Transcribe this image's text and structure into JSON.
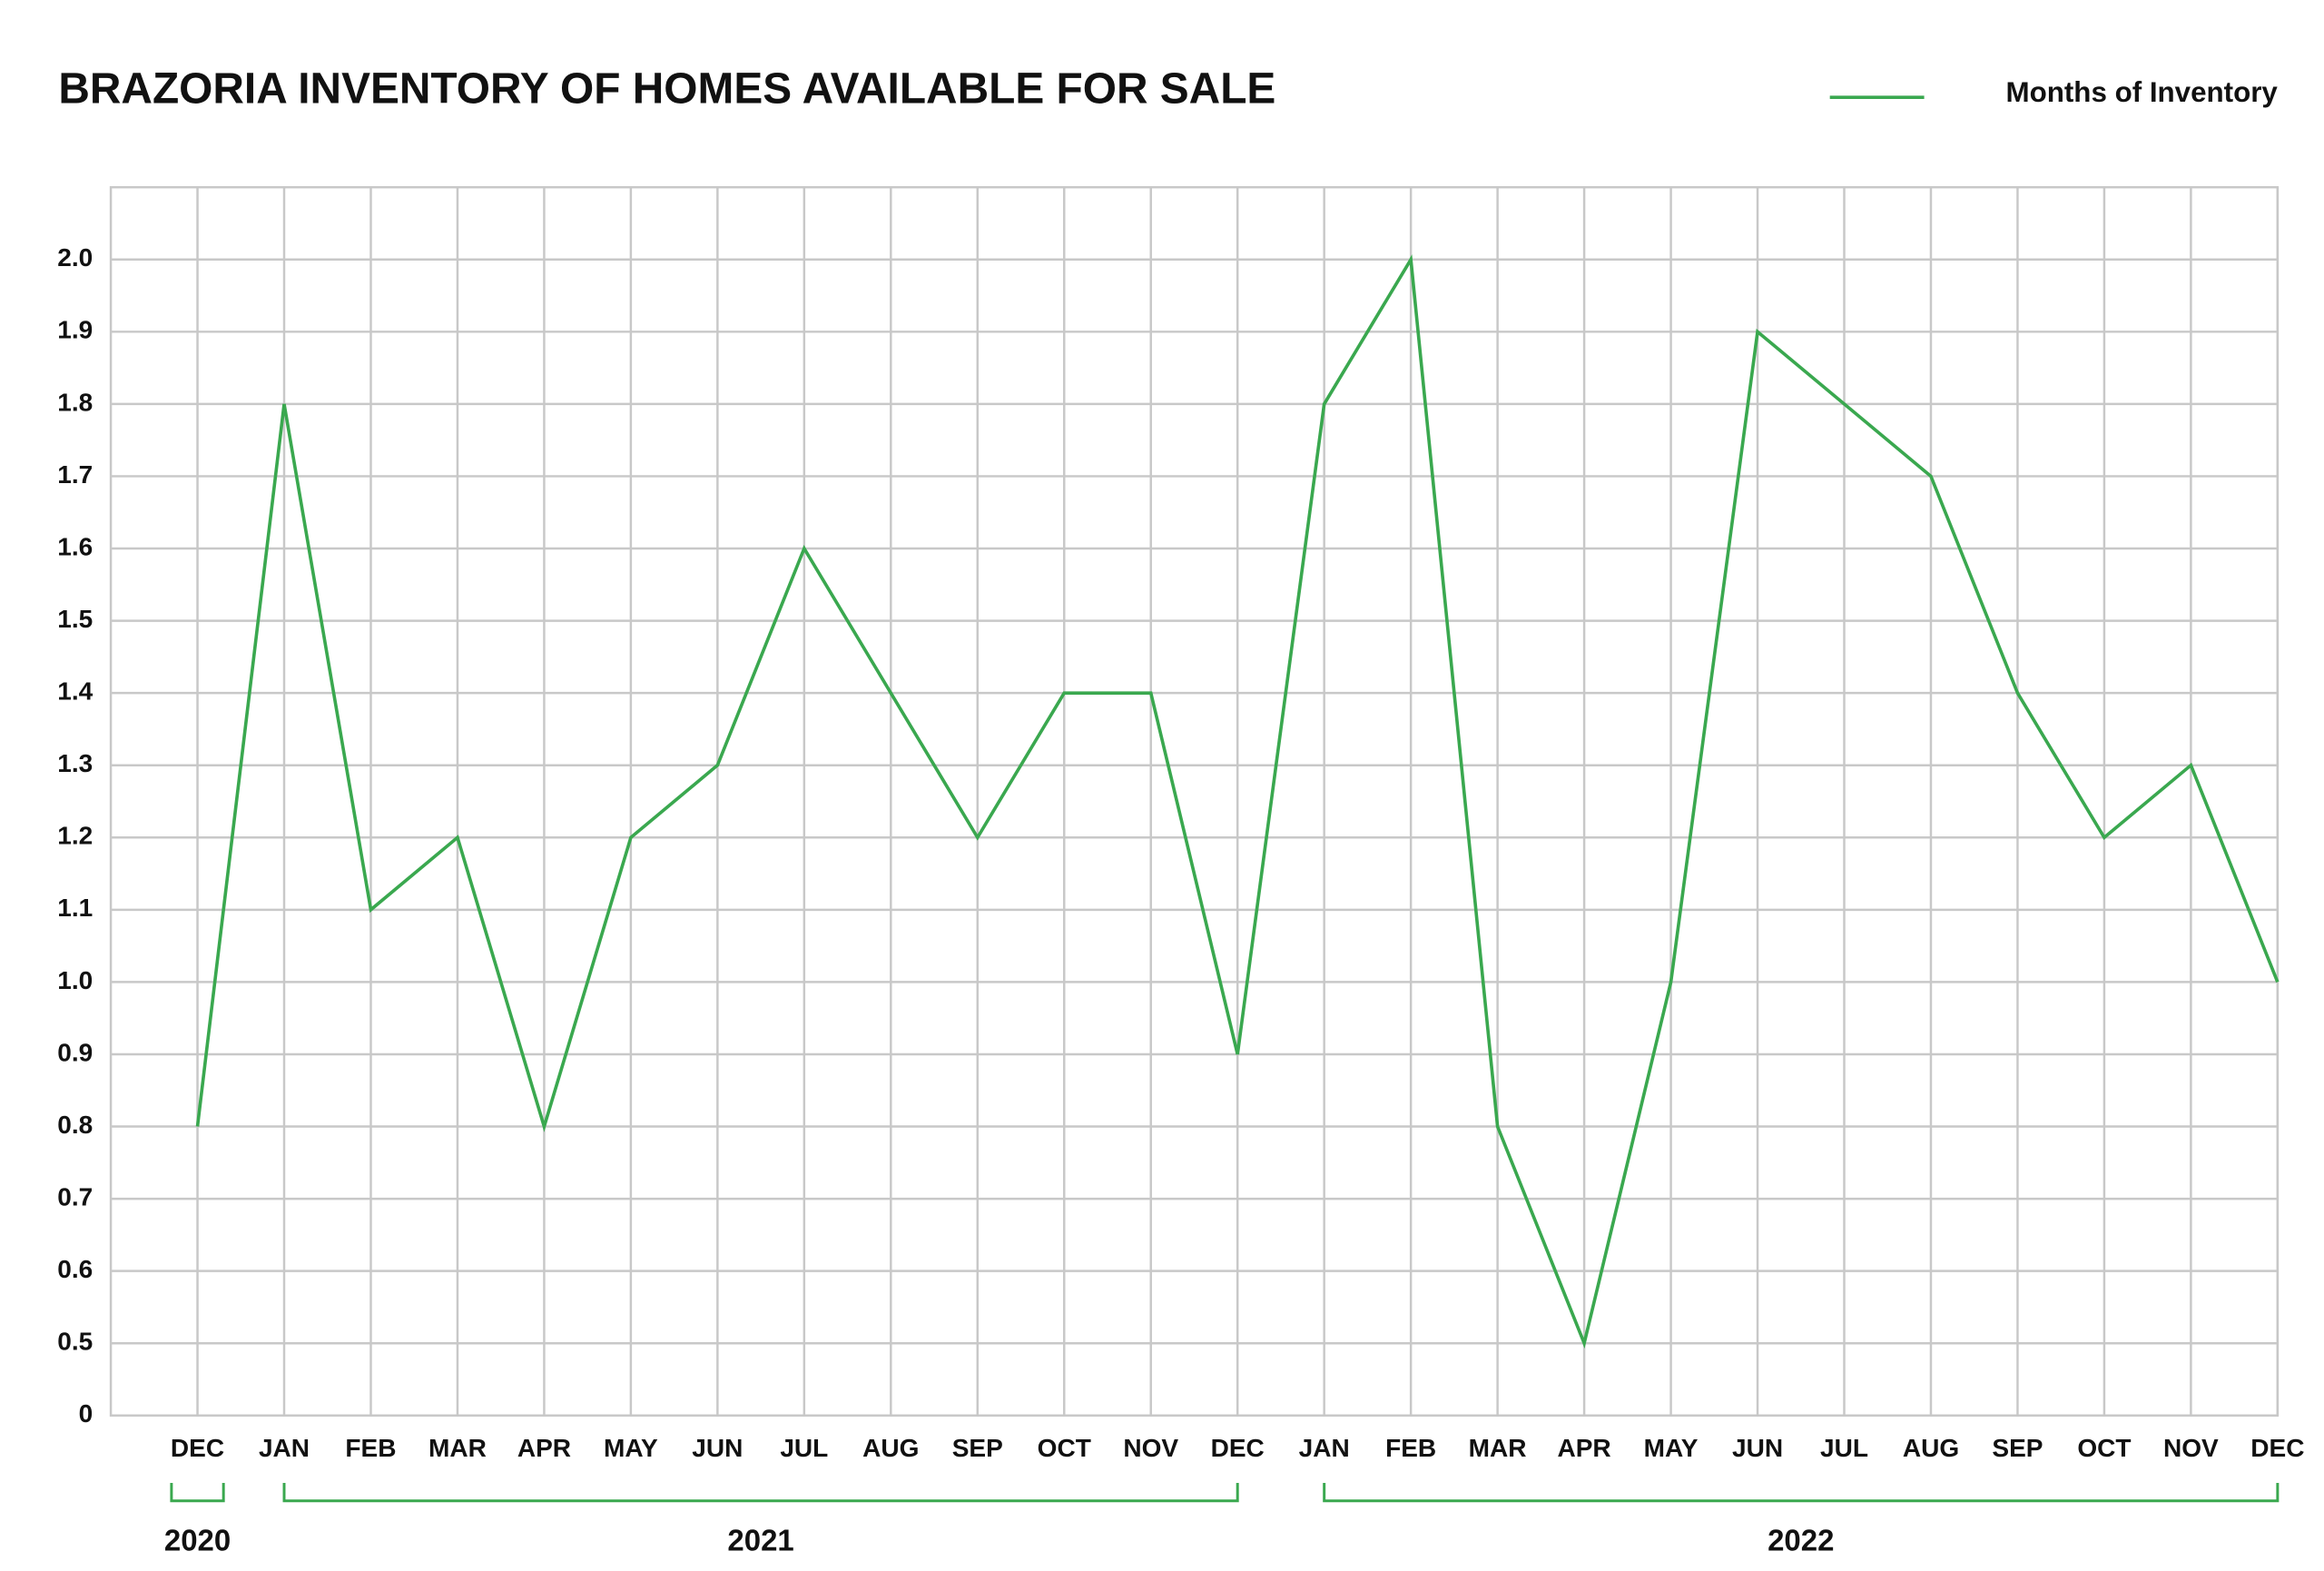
{
  "chart_data": {
    "type": "line",
    "title": "BRAZORIA INVENTORY OF HOMES AVAILABLE FOR SALE",
    "categories": [
      "DEC",
      "JAN",
      "FEB",
      "MAR",
      "APR",
      "MAY",
      "JUN",
      "JUL",
      "AUG",
      "SEP",
      "OCT",
      "NOV",
      "DEC",
      "JAN",
      "FEB",
      "MAR",
      "APR",
      "MAY",
      "JUN",
      "JUL",
      "AUG",
      "SEP",
      "OCT",
      "NOV",
      "DEC"
    ],
    "series": [
      {
        "name": "Months of Inventory",
        "color": "#3aa84f",
        "values": [
          0.8,
          1.8,
          1.1,
          1.2,
          0.8,
          1.2,
          1.3,
          1.6,
          1.4,
          1.2,
          1.4,
          1.4,
          0.9,
          1.8,
          2.0,
          0.8,
          0.5,
          1.0,
          1.9,
          1.8,
          1.7,
          1.4,
          1.2,
          1.3,
          1.0
        ]
      }
    ],
    "year_groups": [
      {
        "label": "2020",
        "start": 0,
        "end": 0
      },
      {
        "label": "2021",
        "start": 1,
        "end": 12
      },
      {
        "label": "2022",
        "start": 13,
        "end": 24
      }
    ],
    "ylim": [
      0.4,
      2.1
    ],
    "yticks": [
      {
        "value": 0.4,
        "label": "0"
      },
      0.5,
      0.6,
      0.7,
      0.8,
      0.9,
      {
        "value": 1.0,
        "label": "1.0"
      },
      1.1,
      1.2,
      1.3,
      1.4,
      1.5,
      1.6,
      1.7,
      1.8,
      1.9,
      {
        "value": 2.0,
        "label": "2.0"
      }
    ],
    "grid": true,
    "legend": "top-right"
  }
}
